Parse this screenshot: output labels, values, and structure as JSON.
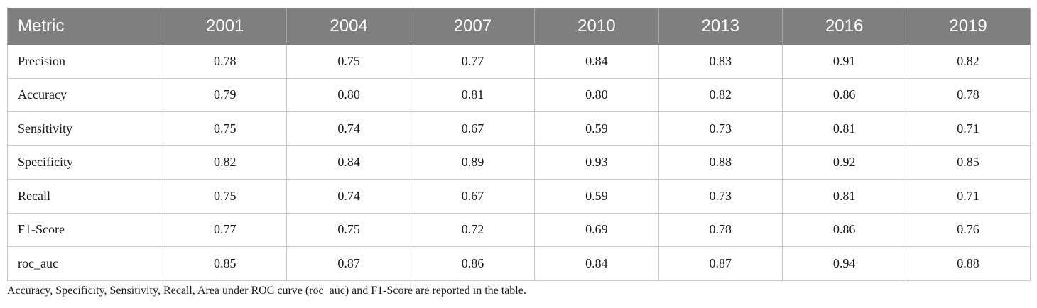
{
  "table": {
    "headers": [
      "Metric",
      "2001",
      "2004",
      "2007",
      "2010",
      "2013",
      "2016",
      "2019"
    ],
    "rows": [
      [
        "Precision",
        "0.78",
        "0.75",
        "0.77",
        "0.84",
        "0.83",
        "0.91",
        "0.82"
      ],
      [
        "Accuracy",
        "0.79",
        "0.80",
        "0.81",
        "0.80",
        "0.82",
        "0.86",
        "0.78"
      ],
      [
        "Sensitivity",
        "0.75",
        "0.74",
        "0.67",
        "0.59",
        "0.73",
        "0.81",
        "0.71"
      ],
      [
        "Specificity",
        "0.82",
        "0.84",
        "0.89",
        "0.93",
        "0.88",
        "0.92",
        "0.85"
      ],
      [
        "Recall",
        "0.75",
        "0.74",
        "0.67",
        "0.59",
        "0.73",
        "0.81",
        "0.71"
      ],
      [
        "F1-Score",
        "0.77",
        "0.75",
        "0.72",
        "0.69",
        "0.78",
        "0.86",
        "0.76"
      ],
      [
        "roc_auc",
        "0.85",
        "0.87",
        "0.86",
        "0.84",
        "0.87",
        "0.94",
        "0.88"
      ]
    ]
  },
  "footnote": "Accuracy, Specificity, Sensitivity, Recall, Area under ROC curve (roc_auc) and F1-Score are reported in the table.",
  "colors": {
    "header_background": "#7f7f7f",
    "header_text": "#ffffff",
    "cell_border": "#c8c8c8"
  }
}
